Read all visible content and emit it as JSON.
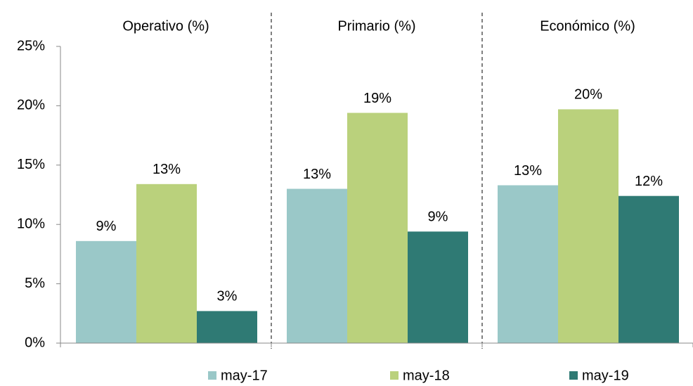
{
  "chart_data": {
    "type": "bar",
    "categories": [
      "Operativo (%)",
      "Primario (%)",
      "Económico (%)"
    ],
    "series": [
      {
        "name": "may-17",
        "color": "#9ac8c8",
        "values": [
          8.6,
          13.0,
          13.3
        ],
        "value_labels": [
          "9%",
          "13%",
          "13%"
        ]
      },
      {
        "name": "may-18",
        "color": "#bad17c",
        "values": [
          13.4,
          19.4,
          19.7
        ],
        "value_labels": [
          "13%",
          "19%",
          "20%"
        ]
      },
      {
        "name": "may-19",
        "color": "#2f7a74",
        "values": [
          2.7,
          9.4,
          12.4
        ],
        "value_labels": [
          "3%",
          "9%",
          "12%"
        ]
      }
    ],
    "ylim": [
      0,
      25
    ],
    "yticks": [
      {
        "value": 0,
        "label": "0%"
      },
      {
        "value": 5,
        "label": "5%"
      },
      {
        "value": 10,
        "label": "10%"
      },
      {
        "value": 15,
        "label": "15%"
      },
      {
        "value": 20,
        "label": "20%"
      },
      {
        "value": 25,
        "label": "25%"
      }
    ],
    "legend": "bottom"
  }
}
